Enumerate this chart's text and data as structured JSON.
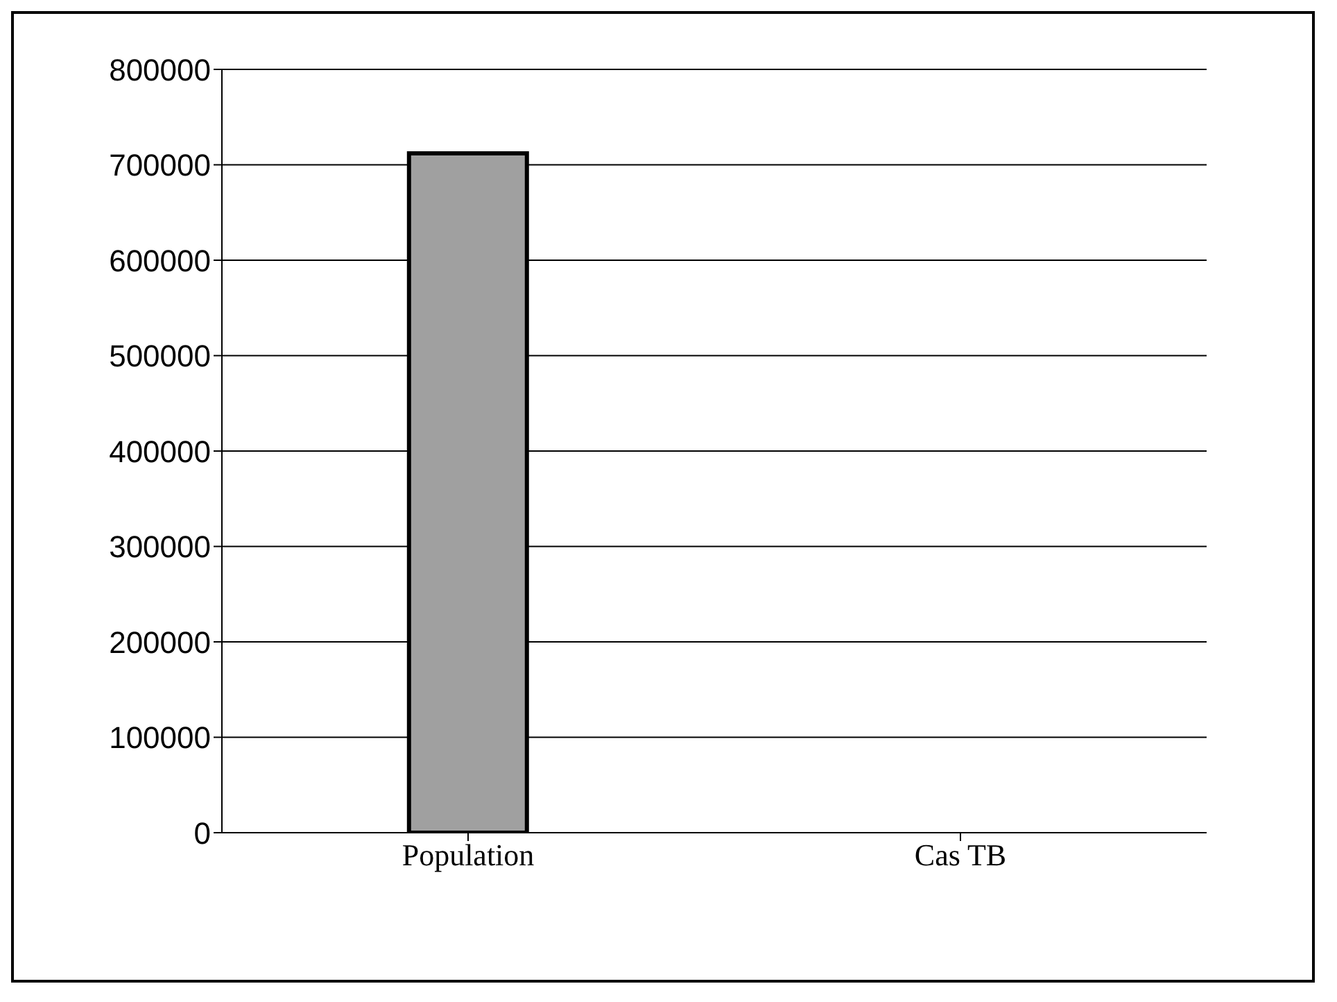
{
  "chart_data": {
    "type": "bar",
    "categories": [
      "Population",
      "Cas TB"
    ],
    "values": [
      712000,
      0
    ],
    "color": "#a0a0a0",
    "ylim": [
      0,
      800000
    ],
    "yticks": [
      0,
      100000,
      200000,
      300000,
      400000,
      500000,
      600000,
      700000,
      800000
    ],
    "grid": "y"
  }
}
